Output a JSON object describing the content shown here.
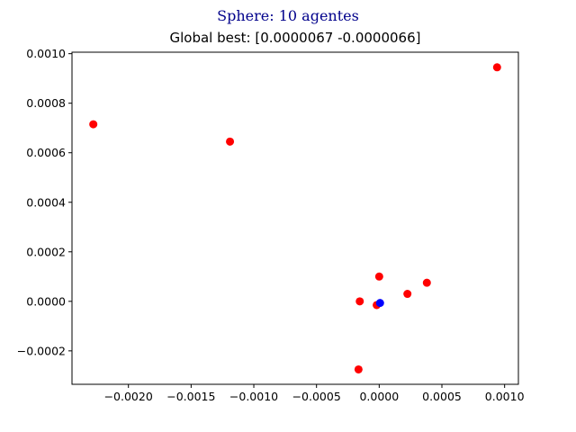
{
  "suptitle": "Sphere: 10 agentes",
  "chart_data": {
    "type": "scatter",
    "title": "Global best: [0.0000067  -0.0000066]",
    "xlabel": "",
    "ylabel": "",
    "xlim": [
      -0.00245,
      0.00111
    ],
    "ylim": [
      -0.000335,
      0.001006
    ],
    "x_ticks": [
      -0.002,
      -0.0015,
      -0.001,
      -0.0005,
      0.0,
      0.0005,
      0.001
    ],
    "x_tick_labels": [
      "−0.0020",
      "−0.0015",
      "−0.0010",
      "−0.0005",
      "0.0000",
      "0.0005",
      "0.0010"
    ],
    "y_ticks": [
      -0.0002,
      0.0,
      0.0002,
      0.0004,
      0.0006,
      0.0008,
      0.001
    ],
    "y_tick_labels": [
      "−0.0002",
      "0.0000",
      "0.0002",
      "0.0004",
      "0.0006",
      "0.0008",
      "0.0010"
    ],
    "grid": false,
    "series": [
      {
        "color": "#ff0000",
        "points": [
          {
            "x": -0.00228,
            "y": 0.000715
          },
          {
            "x": -0.00119,
            "y": 0.000645
          },
          {
            "x": 0.00094,
            "y": 0.000945
          },
          {
            "x": 0.0,
            "y": 0.0001
          },
          {
            "x": 0.00038,
            "y": 7.5e-05
          },
          {
            "x": 0.000225,
            "y": 3e-05
          },
          {
            "x": -0.000155,
            "y": 0.0
          },
          {
            "x": -2e-05,
            "y": -1.5e-05
          },
          {
            "x": -0.000165,
            "y": -0.000275
          }
        ]
      },
      {
        "color": "#0000ff",
        "points": [
          {
            "x": 6.7e-06,
            "y": -6.6e-06
          }
        ]
      }
    ]
  }
}
